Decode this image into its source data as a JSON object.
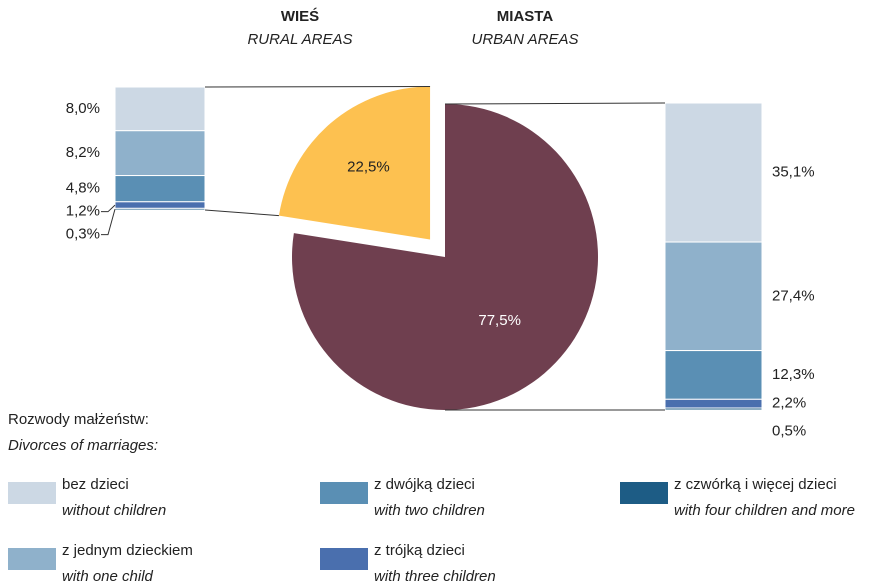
{
  "chart_data": {
    "type": "pie",
    "legend_title": "Rozwody małżeństw:",
    "legend_subtitle": "Divorces of marriages:",
    "categories": [
      "bez dzieci",
      "z jednym dzieckiem",
      "z dwójką dzieci",
      "z trójką dzieci",
      "z czwórką i więcej dzieci"
    ],
    "categories_en": [
      "without children",
      "with one child",
      "with two children",
      "with three children",
      "with four children and more"
    ],
    "colors": [
      "#ccd8e4",
      "#8fb1cb",
      "#5a8fb4",
      "#4a6fae",
      "#1d5c85"
    ],
    "pie": {
      "names": [
        "WIEŚ",
        "MIASTA"
      ],
      "names_en": [
        "RURAL AREAS",
        "URBAN AREAS"
      ],
      "values": [
        22.5,
        77.5
      ],
      "value_labels": [
        "22,5%",
        "77,5%"
      ],
      "colors": [
        "#fdc150",
        "#6f3f4f"
      ]
    },
    "bars": [
      {
        "values": [
          8.0,
          8.2,
          4.8,
          1.2,
          0.3
        ],
        "value_labels": [
          "8,0%",
          "8,2%",
          "4,8%",
          "1,2%",
          "0,3%"
        ]
      },
      {
        "values": [
          35.1,
          27.4,
          12.3,
          2.2,
          0.5
        ],
        "value_labels": [
          "35,1%",
          "27,4%",
          "12,3%",
          "2,2%",
          "0,5%"
        ]
      }
    ]
  }
}
